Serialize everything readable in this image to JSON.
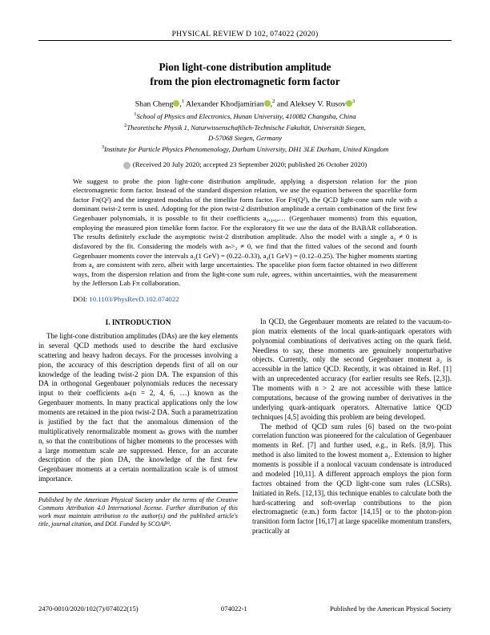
{
  "header": "PHYSICAL REVIEW D 102, 074022 (2020)",
  "title_l1": "Pion light-cone distribution amplitude",
  "title_l2": "from the pion electromagnetic form factor",
  "authors_html": "Shan Cheng",
  "author2": "Alexander Khodjamirian",
  "author3": "Aleksey V. Rusov",
  "sup1": "1",
  "sup2": "2",
  "sup3": "3",
  "affil1": "School of Physics and Electronics, Hunan University, 410082 Changsha, China",
  "affil2a": "Theoretische Physik 1, Naturwissenschaftlich-Technische Fakultät, Universität Siegen,",
  "affil2b": "D-57068 Siegen, Germany",
  "affil3": "Institute for Particle Physics Phenomenology, Durham University, DH1 3LE Durham, United Kingdom",
  "dates": "(Received 20 July 2020; accepted 23 September 2020; published 26 October 2020)",
  "abstract": "We suggest to probe the pion light-cone distribution amplitude, applying a dispersion relation for the pion electromagnetic form factor. Instead of the standard dispersion relation, we use the equation between the spacelike form factor Fπ(Q²) and the integrated modulus of the timelike form factor. For Fπ(Q²), the QCD light-cone sum rule with a dominant twist-2 term is used. Adopting for the pion twist-2 distribution amplitude a certain combination of the first few Gegenbauer polynomials, it is possible to fit their coefficients a₂,₄,₆,… (Gegenbauer moments) from this equation, employing the measured pion timelike form factor. For the exploratory fit we use the data of the BABAR collaboration. The results definitely exclude the asymptotic twist-2 distribution amplitude. Also the model with a single a₂ ≠ 0 is disfavored by the fit. Considering the models with aₙ>₂ ≠ 0, we find that the fitted values of the second and fourth Gegenbauer moments cover the intervals a₂(1 GeV) = (0.22–0.33), a₄(1 GeV) = (0.12–0.25). The higher moments starting from a₆ are consistent with zero, albeit with large uncertainties. The spacelike pion form factor obtained in two different ways, from the dispersion relation and from the light-cone sum rule, agrees, within uncertainties, with the measurement by the Jefferson Lab Fπ collaboration.",
  "doi_lbl": "DOI:",
  "doi": "10.1103/PhysRevD.102.074022",
  "sec_head": "I. INTRODUCTION",
  "leftcol": "The light-cone distribution amplitudes (DAs) are the key elements in several QCD methods used to describe the hard exclusive scattering and heavy hadron decays. For the processes involving a pion, the accuracy of this description depends first of all on our knowledge of the leading twist-2 pion DA. The expansion of this DA in orthogonal Gegenbauer polynomials reduces the necessary input to their coefficients aₙ(n = 2, 4, 6, …) known as the Gegenbauer moments. In many practical applications only the low moments are retained in the pion twist-2 DA. Such a parametrization is justified by the fact that the anomalous dimension of the multiplicatively renormalizable moment aₙ grows with the number n, so that the contributions of higher moments to the processes with a large momentum scale are suppressed. Hence, for an accurate description of the pion DA, the knowledge of the first few Gegenbauer moments at a certain normalization scale is of utmost importance.",
  "rightcol_p1": "In QCD, the Gegenbauer moments are related to the vacuum-to-pion matrix elements of the local quark-antiquark operators with polynomial combinations of derivatives acting on the quark field. Needless to say, these moments are genuinely nonperturbative objects. Currently, only the second Gegenbauer moment a₂ is accessible in the lattice QCD. Recently, it was obtained in Ref. [1] with an unprecedented accuracy (for earlier results see Refs. [2,3]). The moments with n > 2 are not accessible with these lattice computations, because of the growing number of derivatives in the underlying quark-antiquark operators. Alternative lattice QCD techniques [4,5] avoiding this problem are being developed.",
  "rightcol_p2": "The method of QCD sum rules [6] based on the two-point correlation function was pioneered for the calculation of Gegenbauer moments in Ref. [7] and further used, e.g., in Refs. [8,9]. This method is also limited to the lowest moment a₂. Extension to higher moments is possible if a nonlocal vacuum condensate is introduced and modeled [10,11]. A different approach employs the pion form factors obtained from the QCD light-cone sum rules (LCSRs). Initiated in Refs. [12,13], this technique enables to calculate both the hard-scattering and soft-overlap contributions to the pion electromagnetic (e.m.) form factor [14,15] or to the photon-pion transition form factor [16,17] at large spacelike momentum transfers, practically at",
  "footnote": "Published by the American Physical Society under the terms of the Creative Commons Attribution 4.0 International license. Further distribution of this work must maintain attribution to the author(s) and the published article's title, journal citation, and DOI. Funded by SCOAP³.",
  "footer_left": "2470-0010/2020/102(7)/074022(15)",
  "footer_center": "074022-1",
  "footer_right": "Published by the American Physical Society"
}
